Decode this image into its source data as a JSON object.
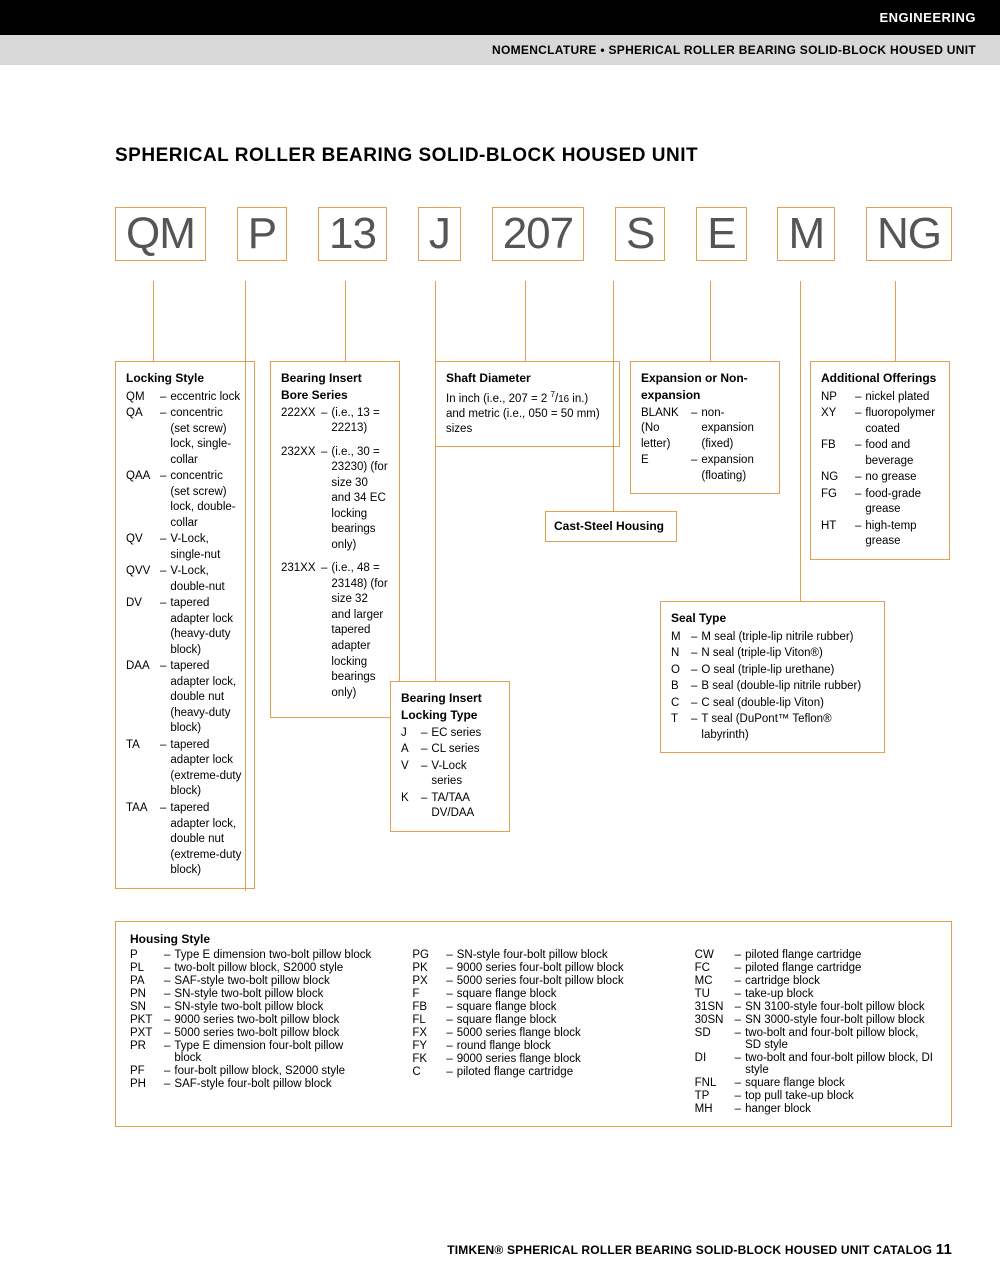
{
  "header": {
    "category": "ENGINEERING",
    "subtitle": "NOMENCLATURE • SPHERICAL ROLLER BEARING SOLID-BLOCK HOUSED UNIT"
  },
  "title": "SPHERICAL ROLLER BEARING SOLID-BLOCK HOUSED UNIT",
  "code_segments": [
    "QM",
    "P",
    "13",
    "J",
    "207",
    "S",
    "E",
    "M",
    "NG"
  ],
  "locking_style": {
    "title": "Locking Style",
    "items": [
      {
        "code": "QM",
        "text": "eccentric lock"
      },
      {
        "code": "QA",
        "text": "concentric (set screw) lock, single-collar"
      },
      {
        "code": "QAA",
        "text": "concentric (set screw) lock, double-collar"
      },
      {
        "code": "QV",
        "text": "V-Lock, single-nut"
      },
      {
        "code": "QVV",
        "text": "V-Lock, double-nut"
      },
      {
        "code": "DV",
        "text": "tapered adapter lock (heavy-duty block)"
      },
      {
        "code": "DAA",
        "text": "tapered adapter lock, double nut (heavy-duty block)"
      },
      {
        "code": "TA",
        "text": "tapered adapter lock (extreme-duty block)"
      },
      {
        "code": "TAA",
        "text": "tapered adapter lock, double nut (extreme-duty block)"
      }
    ]
  },
  "bearing_insert_bore": {
    "title": "Bearing Insert Bore Series",
    "items": [
      {
        "code": "222XX",
        "text": "(i.e., 13 = 22213)"
      },
      {
        "code": "232XX",
        "text": "(i.e., 30 = 23230) (for size 30 and 34 EC locking bearings only)"
      },
      {
        "code": "231XX",
        "text": "(i.e., 48 = 23148) (for size 32 and larger tapered adapter locking bearings only)"
      }
    ]
  },
  "bearing_insert_locking": {
    "title": "Bearing Insert Locking Type",
    "items": [
      {
        "code": "J",
        "text": "EC series"
      },
      {
        "code": "A",
        "text": "CL series"
      },
      {
        "code": "V",
        "text": "V-Lock series"
      },
      {
        "code": "K",
        "text": "TA/TAA DV/DAA"
      }
    ]
  },
  "shaft_diameter": {
    "title": "Shaft Diameter",
    "text_a": "In inch (i.e., 207 = 2 ",
    "text_b": " in.) and metric (i.e., 050 = 50 mm) sizes"
  },
  "cast_steel": {
    "title": "Cast-Steel Housing"
  },
  "expansion": {
    "title": "Expansion or Non-expansion",
    "items": [
      {
        "code": "BLANK (No letter)",
        "text": "non-expansion (fixed)"
      },
      {
        "code": "E",
        "text": "expansion (floating)"
      }
    ]
  },
  "seal_type": {
    "title": "Seal Type",
    "items": [
      {
        "code": "M",
        "text": "M seal (triple-lip nitrile rubber)"
      },
      {
        "code": "N",
        "text": "N seal (triple-lip Viton®)"
      },
      {
        "code": "O",
        "text": "O seal (triple-lip urethane)"
      },
      {
        "code": "B",
        "text": "B seal (double-lip nitrile rubber)"
      },
      {
        "code": "C",
        "text": "C seal (double-lip Viton)"
      },
      {
        "code": "T",
        "text": "T seal (DuPont™ Teflon® labyrinth)"
      }
    ]
  },
  "additional_offerings": {
    "title": "Additional Offerings",
    "items": [
      {
        "code": "NP",
        "text": "nickel plated"
      },
      {
        "code": "XY",
        "text": "fluoropolymer coated"
      },
      {
        "code": "FB",
        "text": "food and beverage"
      },
      {
        "code": "NG",
        "text": "no grease"
      },
      {
        "code": "FG",
        "text": "food-grade grease"
      },
      {
        "code": "HT",
        "text": "high-temp grease"
      }
    ]
  },
  "housing_style": {
    "title": "Housing Style",
    "col1": [
      {
        "code": "P",
        "text": "Type E dimension two-bolt pillow block"
      },
      {
        "code": "PL",
        "text": "two-bolt pillow block, S2000 style"
      },
      {
        "code": "PA",
        "text": "SAF-style two-bolt pillow block"
      },
      {
        "code": "PN",
        "text": "SN-style two-bolt pillow block"
      },
      {
        "code": "SN",
        "text": "SN-style two-bolt pillow block"
      },
      {
        "code": "PKT",
        "text": "9000 series two-bolt pillow block"
      },
      {
        "code": "PXT",
        "text": "5000 series two-bolt pillow block"
      },
      {
        "code": "PR",
        "text": "Type E dimension four-bolt pillow block"
      },
      {
        "code": "PF",
        "text": "four-bolt pillow block, S2000 style"
      },
      {
        "code": "PH",
        "text": "SAF-style four-bolt pillow block"
      }
    ],
    "col2": [
      {
        "code": "PG",
        "text": "SN-style four-bolt pillow block"
      },
      {
        "code": "PK",
        "text": "9000 series four-bolt pillow block"
      },
      {
        "code": "PX",
        "text": "5000 series four-bolt pillow block"
      },
      {
        "code": "F",
        "text": "square flange block"
      },
      {
        "code": "FB",
        "text": "square flange block"
      },
      {
        "code": "FL",
        "text": "square flange block"
      },
      {
        "code": "FX",
        "text": "5000 series flange block"
      },
      {
        "code": "FY",
        "text": "round flange block"
      },
      {
        "code": "FK",
        "text": "9000 series flange block"
      },
      {
        "code": "C",
        "text": "piloted flange cartridge"
      }
    ],
    "col3": [
      {
        "code": "CW",
        "text": "piloted flange cartridge"
      },
      {
        "code": "FC",
        "text": "piloted flange cartridge"
      },
      {
        "code": "MC",
        "text": "cartridge block"
      },
      {
        "code": "TU",
        "text": "take-up block"
      },
      {
        "code": "31SN",
        "text": "SN 3100-style four-bolt pillow block"
      },
      {
        "code": "30SN",
        "text": "SN 3000-style four-bolt pillow block"
      },
      {
        "code": "SD",
        "text": "two-bolt and four-bolt pillow block, SD style"
      },
      {
        "code": "DI",
        "text": "two-bolt and four-bolt pillow block, DI style"
      },
      {
        "code": "FNL",
        "text": "square flange block"
      },
      {
        "code": "TP",
        "text": "top pull take-up block"
      },
      {
        "code": "MH",
        "text": "hanger block"
      }
    ]
  },
  "footer": {
    "text": "TIMKEN® SPHERICAL ROLLER BEARING SOLID-BLOCK HOUSED UNIT CATALOG",
    "page": "11"
  },
  "colors": {
    "accent": "#e0a050",
    "text": "#222",
    "code_text": "#555"
  }
}
